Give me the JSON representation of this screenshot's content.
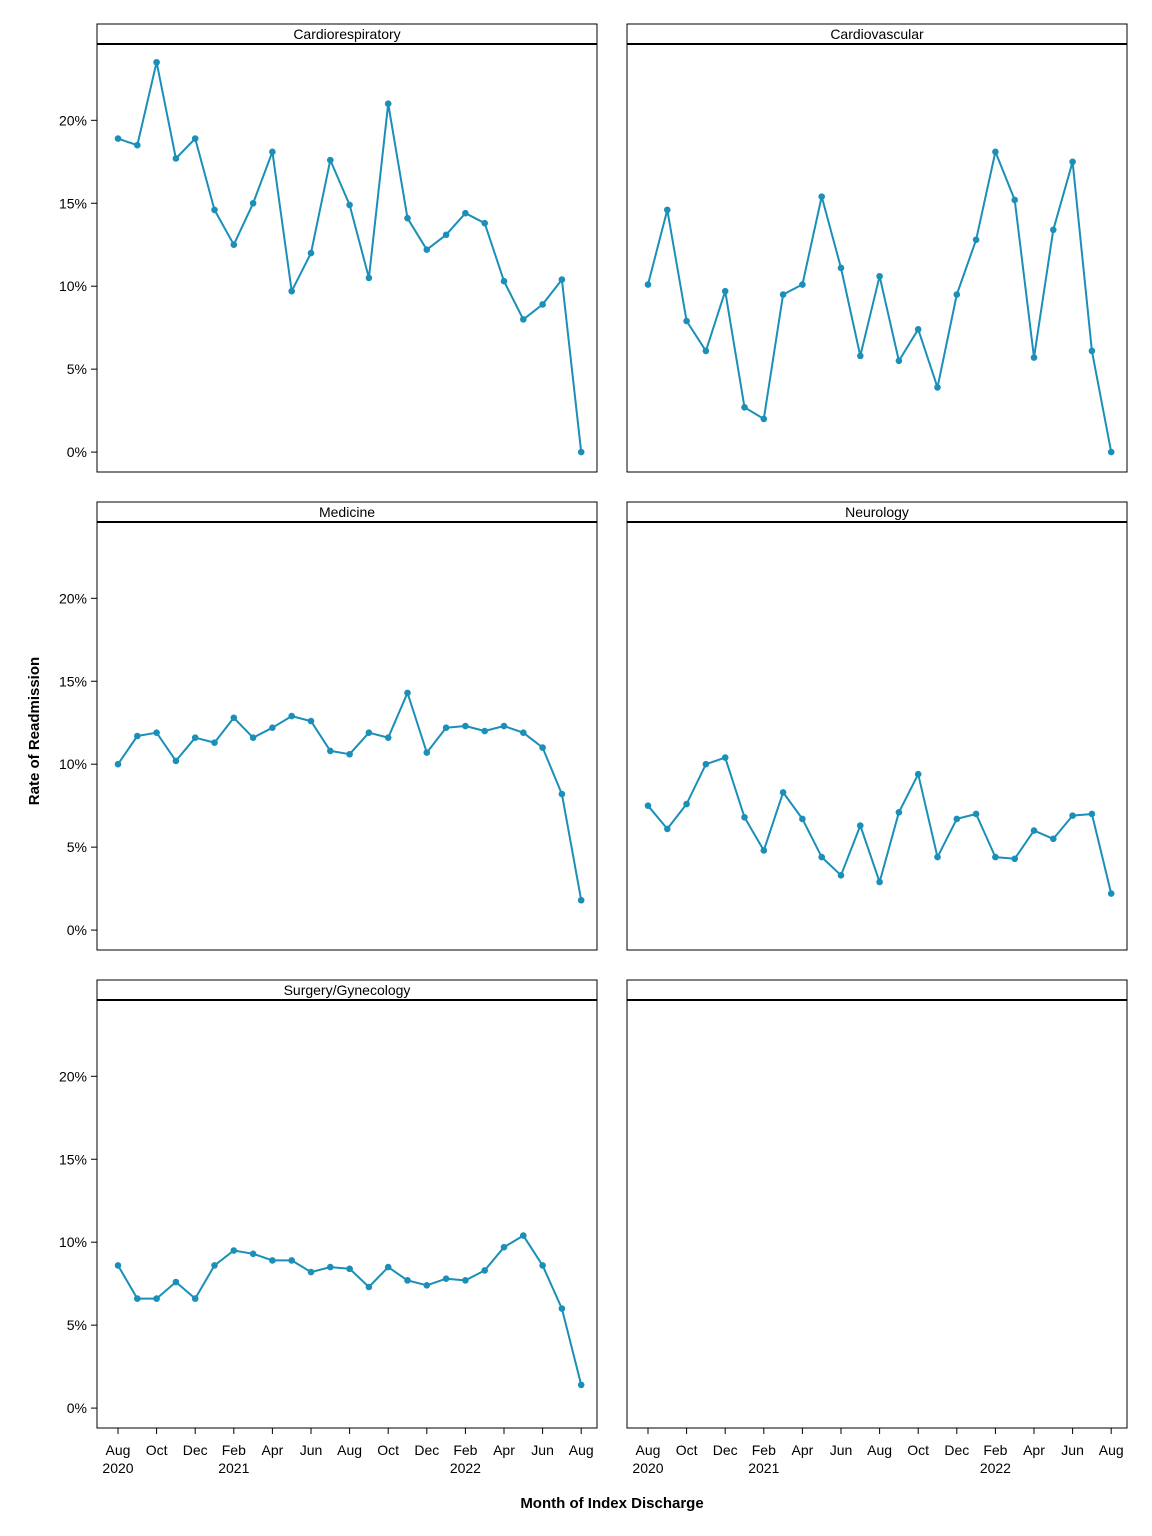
{
  "chart_data": {
    "type": "line",
    "xlabel": "Month of Index Discharge",
    "ylabel": "Rate of Readmission",
    "ylim": [
      -1.2,
      24.6
    ],
    "yticks": [
      0,
      5,
      10,
      15,
      20
    ],
    "ytick_labels": [
      "0%",
      "5%",
      "10%",
      "15%",
      "20%"
    ],
    "x": [
      "2020-08",
      "2020-09",
      "2020-10",
      "2020-11",
      "2020-12",
      "2021-01",
      "2021-02",
      "2021-03",
      "2021-04",
      "2021-05",
      "2021-06",
      "2021-07",
      "2021-08",
      "2021-09",
      "2021-10",
      "2021-11",
      "2021-12",
      "2022-01",
      "2022-02",
      "2022-03",
      "2022-04",
      "2022-05",
      "2022-06",
      "2022-07",
      "2022-08"
    ],
    "xticks": [
      {
        "month": "Aug",
        "year": "2020",
        "index": 0
      },
      {
        "month": "Oct",
        "year": "",
        "index": 2
      },
      {
        "month": "Dec",
        "year": "",
        "index": 4
      },
      {
        "month": "Feb",
        "year": "2021",
        "index": 6
      },
      {
        "month": "Apr",
        "year": "",
        "index": 8
      },
      {
        "month": "Jun",
        "year": "",
        "index": 10
      },
      {
        "month": "Aug",
        "year": "",
        "index": 12
      },
      {
        "month": "Oct",
        "year": "",
        "index": 14
      },
      {
        "month": "Dec",
        "year": "",
        "index": 16
      },
      {
        "month": "Feb",
        "year": "2022",
        "index": 18
      },
      {
        "month": "Apr",
        "year": "",
        "index": 20
      },
      {
        "month": "Jun",
        "year": "",
        "index": 22
      },
      {
        "month": "Aug",
        "year": "",
        "index": 24
      }
    ],
    "line_color": "#1a8fb8",
    "grid": false,
    "panels": [
      {
        "title": "Cardiorespiratory",
        "values": [
          18.9,
          18.5,
          23.5,
          17.7,
          18.9,
          14.6,
          12.5,
          15.0,
          18.1,
          9.7,
          12.0,
          17.6,
          14.9,
          10.5,
          21.0,
          14.1,
          12.2,
          13.1,
          14.4,
          13.8,
          10.3,
          8.0,
          8.9,
          10.4,
          0.0
        ]
      },
      {
        "title": "Cardiovascular",
        "values": [
          10.1,
          14.6,
          7.9,
          6.1,
          9.7,
          2.7,
          2.0,
          9.5,
          10.1,
          15.4,
          11.1,
          5.8,
          10.6,
          5.5,
          7.4,
          3.9,
          9.5,
          12.8,
          18.1,
          15.2,
          5.7,
          13.4,
          17.5,
          6.1,
          0.0
        ]
      },
      {
        "title": "Medicine",
        "values": [
          10.0,
          11.7,
          11.9,
          10.2,
          11.6,
          11.3,
          12.8,
          11.6,
          12.2,
          12.9,
          12.6,
          10.8,
          10.6,
          11.9,
          11.6,
          14.3,
          10.7,
          12.2,
          12.3,
          12.0,
          12.3,
          11.9,
          11.0,
          8.2,
          1.8
        ]
      },
      {
        "title": "Neurology",
        "values": [
          7.5,
          6.1,
          7.6,
          10.0,
          10.4,
          6.8,
          4.8,
          8.3,
          6.7,
          4.4,
          3.3,
          6.3,
          2.9,
          7.1,
          9.4,
          4.4,
          6.7,
          7.0,
          4.4,
          4.3,
          6.0,
          5.5,
          6.9,
          7.0,
          2.2
        ]
      },
      {
        "title": "Surgery/Gynecology",
        "values": [
          8.6,
          6.6,
          6.6,
          7.6,
          6.6,
          8.6,
          9.5,
          9.3,
          8.9,
          8.9,
          8.2,
          8.5,
          8.4,
          7.3,
          8.5,
          7.7,
          7.4,
          7.8,
          7.7,
          8.3,
          9.7,
          10.4,
          8.6,
          6.0,
          1.4
        ]
      },
      {
        "title": "",
        "values": []
      }
    ]
  }
}
